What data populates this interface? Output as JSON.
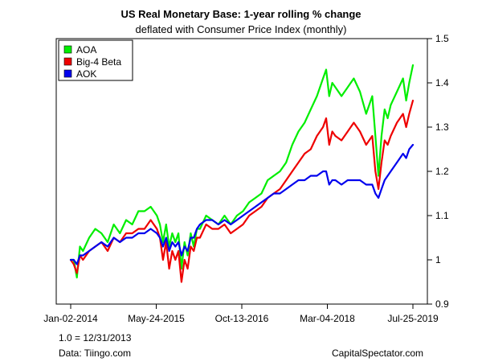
{
  "chart_data": {
    "type": "line",
    "title": "US Real Monetary Base: 1-year rolling % change",
    "subtitle": "deflated with Consumer Price Index (monthly)",
    "xlabel": "",
    "ylabel": "",
    "ylim": [
      0.9,
      1.5
    ],
    "yticks": [
      "0.9",
      "1",
      "1.1",
      "1.2",
      "1.3",
      "1.4",
      "1.5"
    ],
    "ytick_values": [
      0.9,
      1.0,
      1.1,
      1.2,
      1.3,
      1.4,
      1.5
    ],
    "xlim": [
      0,
      5.56
    ],
    "xticks": [
      "Jan-02-2014",
      "May-24-2015",
      "Oct-13-2016",
      "Mar-04-2018",
      "Jul-25-2019"
    ],
    "xtick_values": [
      0,
      1.39,
      2.78,
      4.17,
      5.56
    ],
    "grid": false,
    "legend_position": "top-left",
    "series": [
      {
        "name": "AOA",
        "color": "#00ee00",
        "x": [
          0,
          0.05,
          0.1,
          0.15,
          0.2,
          0.3,
          0.4,
          0.5,
          0.6,
          0.7,
          0.8,
          0.9,
          1.0,
          1.1,
          1.2,
          1.3,
          1.4,
          1.45,
          1.5,
          1.55,
          1.6,
          1.65,
          1.7,
          1.75,
          1.8,
          1.85,
          1.9,
          1.95,
          2.0,
          2.05,
          2.1,
          2.2,
          2.3,
          2.4,
          2.5,
          2.6,
          2.7,
          2.8,
          2.9,
          3.0,
          3.1,
          3.2,
          3.3,
          3.4,
          3.5,
          3.6,
          3.7,
          3.8,
          3.9,
          4.0,
          4.1,
          4.15,
          4.2,
          4.25,
          4.3,
          4.4,
          4.5,
          4.6,
          4.7,
          4.8,
          4.9,
          4.95,
          5.0,
          5.05,
          5.1,
          5.15,
          5.2,
          5.3,
          5.4,
          5.45,
          5.5,
          5.56
        ],
        "values": [
          1.0,
          1.0,
          0.96,
          1.03,
          1.02,
          1.05,
          1.07,
          1.06,
          1.04,
          1.08,
          1.06,
          1.09,
          1.08,
          1.11,
          1.11,
          1.12,
          1.1,
          1.08,
          1.04,
          1.08,
          1.03,
          1.06,
          1.04,
          1.06,
          0.98,
          1.04,
          1.01,
          1.06,
          1.03,
          1.07,
          1.07,
          1.1,
          1.09,
          1.08,
          1.1,
          1.08,
          1.1,
          1.11,
          1.13,
          1.14,
          1.15,
          1.18,
          1.19,
          1.2,
          1.22,
          1.26,
          1.29,
          1.31,
          1.34,
          1.37,
          1.41,
          1.43,
          1.37,
          1.4,
          1.39,
          1.37,
          1.39,
          1.41,
          1.38,
          1.33,
          1.37,
          1.28,
          1.19,
          1.28,
          1.34,
          1.32,
          1.35,
          1.38,
          1.41,
          1.36,
          1.4,
          1.44
        ]
      },
      {
        "name": "Big-4 Beta",
        "color": "#ee0000",
        "x": [
          0,
          0.05,
          0.1,
          0.15,
          0.2,
          0.3,
          0.4,
          0.5,
          0.6,
          0.7,
          0.8,
          0.9,
          1.0,
          1.1,
          1.2,
          1.3,
          1.4,
          1.45,
          1.5,
          1.55,
          1.6,
          1.65,
          1.7,
          1.75,
          1.8,
          1.85,
          1.9,
          1.95,
          2.0,
          2.05,
          2.1,
          2.2,
          2.3,
          2.4,
          2.5,
          2.6,
          2.7,
          2.8,
          2.9,
          3.0,
          3.1,
          3.2,
          3.3,
          3.4,
          3.5,
          3.6,
          3.7,
          3.8,
          3.9,
          4.0,
          4.1,
          4.15,
          4.2,
          4.25,
          4.3,
          4.4,
          4.5,
          4.6,
          4.7,
          4.8,
          4.9,
          4.95,
          5.0,
          5.05,
          5.1,
          5.15,
          5.2,
          5.3,
          5.4,
          5.45,
          5.5,
          5.56
        ],
        "values": [
          1.0,
          0.99,
          0.97,
          1.01,
          1.0,
          1.02,
          1.03,
          1.04,
          1.02,
          1.05,
          1.04,
          1.06,
          1.06,
          1.07,
          1.07,
          1.09,
          1.07,
          1.05,
          1.0,
          1.04,
          0.98,
          1.02,
          1.0,
          1.02,
          0.95,
          1.0,
          0.98,
          1.03,
          1.02,
          1.05,
          1.05,
          1.08,
          1.07,
          1.07,
          1.08,
          1.06,
          1.07,
          1.08,
          1.1,
          1.11,
          1.12,
          1.14,
          1.15,
          1.16,
          1.18,
          1.2,
          1.22,
          1.24,
          1.25,
          1.28,
          1.3,
          1.32,
          1.26,
          1.29,
          1.28,
          1.27,
          1.29,
          1.31,
          1.29,
          1.26,
          1.28,
          1.2,
          1.16,
          1.22,
          1.27,
          1.26,
          1.28,
          1.31,
          1.33,
          1.3,
          1.33,
          1.36
        ]
      },
      {
        "name": "AOK",
        "color": "#0000ee",
        "x": [
          0,
          0.05,
          0.1,
          0.15,
          0.2,
          0.3,
          0.4,
          0.5,
          0.6,
          0.7,
          0.8,
          0.9,
          1.0,
          1.1,
          1.2,
          1.3,
          1.4,
          1.45,
          1.5,
          1.55,
          1.6,
          1.65,
          1.7,
          1.75,
          1.8,
          1.85,
          1.9,
          1.95,
          2.0,
          2.05,
          2.1,
          2.2,
          2.3,
          2.4,
          2.5,
          2.6,
          2.7,
          2.8,
          2.9,
          3.0,
          3.1,
          3.2,
          3.3,
          3.4,
          3.5,
          3.6,
          3.7,
          3.8,
          3.9,
          4.0,
          4.1,
          4.15,
          4.2,
          4.25,
          4.3,
          4.4,
          4.5,
          4.6,
          4.7,
          4.8,
          4.9,
          4.95,
          5.0,
          5.05,
          5.1,
          5.15,
          5.2,
          5.3,
          5.4,
          5.45,
          5.5,
          5.56
        ],
        "values": [
          1.0,
          1.0,
          0.99,
          1.01,
          1.01,
          1.02,
          1.03,
          1.04,
          1.03,
          1.05,
          1.04,
          1.05,
          1.05,
          1.06,
          1.06,
          1.07,
          1.06,
          1.05,
          1.03,
          1.05,
          1.02,
          1.04,
          1.03,
          1.04,
          1.01,
          1.03,
          1.02,
          1.05,
          1.05,
          1.07,
          1.08,
          1.09,
          1.09,
          1.08,
          1.09,
          1.08,
          1.09,
          1.1,
          1.11,
          1.12,
          1.13,
          1.14,
          1.15,
          1.15,
          1.16,
          1.17,
          1.18,
          1.18,
          1.19,
          1.19,
          1.2,
          1.2,
          1.17,
          1.18,
          1.18,
          1.17,
          1.18,
          1.18,
          1.18,
          1.17,
          1.17,
          1.15,
          1.14,
          1.16,
          1.18,
          1.19,
          1.2,
          1.22,
          1.24,
          1.23,
          1.25,
          1.26
        ]
      }
    ]
  },
  "footnotes": {
    "base": "1.0 = 12/31/2013",
    "source": "Data: Tiingo.com",
    "credit": "CapitalSpectator.com"
  }
}
